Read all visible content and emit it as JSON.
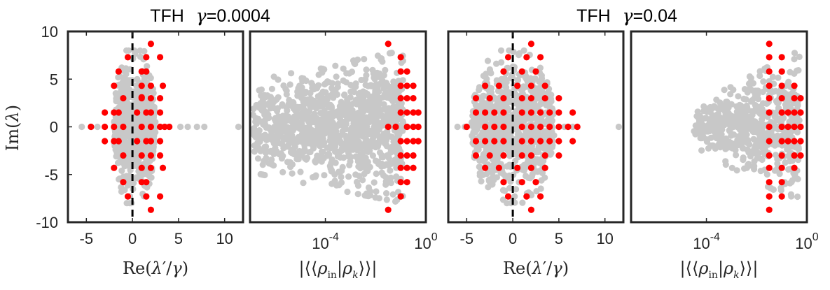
{
  "colors": {
    "gray": "#c8c8c8",
    "red": "#ff0000",
    "frame": "#262626"
  },
  "titles": [
    {
      "prefix": "TFH",
      "greek": "γ",
      "value": "=0.0004"
    },
    {
      "prefix": "TFH",
      "greek": "γ",
      "value": "=0.04"
    }
  ],
  "chart_data": [
    {
      "type": "scatter",
      "panel": "left-1",
      "title": "TFH γ=0.0004",
      "xlabel": "Re(λ′/γ)",
      "ylabel": "Im(λ)",
      "xlim": [
        -7,
        12
      ],
      "ylim": [
        -10,
        10
      ],
      "xticks": [
        -5,
        0,
        5,
        10
      ],
      "xticklabels": [
        "-5",
        "0",
        "5",
        "10"
      ],
      "yticks": [
        10,
        5,
        0,
        -5,
        -10
      ],
      "yticklabels": [
        "10",
        "5",
        "0",
        "-5",
        "-10"
      ],
      "vline": 0,
      "series": [
        {
          "name": "all eigenvalues",
          "color": "gray",
          "distribution": "cloud",
          "n": 700,
          "xrange": [
            -2,
            2.5
          ],
          "yrange": [
            -8,
            8
          ],
          "axis_points": [
            [
              -5.5,
              0
            ],
            [
              -4.5,
              0
            ],
            [
              -3.8,
              0
            ],
            [
              5.2,
              0
            ],
            [
              6.0,
              0
            ],
            [
              7.0,
              0
            ],
            [
              7.8,
              0
            ],
            [
              11.5,
              0
            ]
          ]
        },
        {
          "name": "selected",
          "color": "red",
          "points": [
            [
              -4.5,
              0
            ],
            [
              -3,
              0
            ],
            [
              -2,
              0
            ],
            [
              -1,
              0
            ],
            [
              1,
              0
            ],
            [
              2,
              0
            ],
            [
              3,
              0
            ],
            [
              3.5,
              0
            ],
            [
              4,
              0
            ],
            [
              -3,
              1.5
            ],
            [
              -2,
              1.5
            ],
            [
              -1.5,
              1.5
            ],
            [
              0.5,
              1.5
            ],
            [
              1.5,
              1.5
            ],
            [
              2,
              1.5
            ],
            [
              3,
              1.5
            ],
            [
              -3,
              -1.5
            ],
            [
              -2,
              -1.5
            ],
            [
              -1.5,
              -1.5
            ],
            [
              0.5,
              -1.5
            ],
            [
              1.5,
              -1.5
            ],
            [
              2,
              -1.5
            ],
            [
              3,
              -1.5
            ],
            [
              -1,
              3
            ],
            [
              1,
              3
            ],
            [
              2,
              3
            ],
            [
              3,
              3
            ],
            [
              -1,
              -3
            ],
            [
              1,
              3.1
            ],
            [
              1,
              -3
            ],
            [
              2,
              -3
            ],
            [
              3,
              -3
            ],
            [
              -2,
              4.3
            ],
            [
              1,
              4.3
            ],
            [
              2,
              4.3
            ],
            [
              3.3,
              4.3
            ],
            [
              -2,
              -4.3
            ],
            [
              1,
              -4.3
            ],
            [
              2,
              -4.3
            ],
            [
              3.3,
              -4.3
            ],
            [
              -1.5,
              5.8
            ],
            [
              1,
              5.8
            ],
            [
              1.5,
              5.8
            ],
            [
              -1,
              -5.8
            ],
            [
              1,
              -5.8
            ],
            [
              1.5,
              -5.8
            ],
            [
              -0.5,
              7.3
            ],
            [
              1.5,
              7.3
            ],
            [
              3,
              7.3
            ],
            [
              -0.5,
              -7.3
            ],
            [
              1.5,
              -7.3
            ],
            [
              3,
              -7.3
            ],
            [
              2,
              8.7
            ],
            [
              2,
              -8.7
            ]
          ]
        }
      ]
    },
    {
      "type": "scatter",
      "panel": "left-2",
      "xlabel": "|⟨⟨ρin|ρk⟩⟩|",
      "xscale": "log",
      "xlim_log10": [
        -7,
        0
      ],
      "ylim": [
        -10,
        10
      ],
      "xticks_log10": [
        -4,
        0
      ],
      "xticklabels": [
        {
          "base": "10",
          "exp": "-4"
        },
        {
          "base": "10",
          "exp": "0"
        }
      ],
      "series": [
        {
          "name": "all eigenvalues",
          "color": "gray",
          "distribution": "wide-cloud",
          "n": 1100,
          "xrange_log10": [
            -6.9,
            -0.9
          ],
          "yrange": [
            -8,
            8
          ]
        },
        {
          "name": "selected",
          "color": "red",
          "points": [
            [
              -1.5,
              0
            ],
            [
              -1.2,
              0
            ],
            [
              -0.75,
              0
            ],
            [
              -0.5,
              0
            ],
            [
              -0.3,
              0
            ],
            [
              -1,
              1.5
            ],
            [
              -0.75,
              1.5
            ],
            [
              -0.5,
              1.5
            ],
            [
              -0.3,
              1.5
            ],
            [
              -1,
              -1.5
            ],
            [
              -0.75,
              -1.5
            ],
            [
              -0.5,
              -1.5
            ],
            [
              -0.3,
              -1.5
            ],
            [
              -1,
              3
            ],
            [
              -0.75,
              3
            ],
            [
              -0.5,
              3
            ],
            [
              -1,
              -3
            ],
            [
              -0.75,
              -3
            ],
            [
              -0.5,
              -3
            ],
            [
              -1,
              4.3
            ],
            [
              -0.75,
              4.3
            ],
            [
              -0.5,
              4.3
            ],
            [
              -1,
              -4.3
            ],
            [
              -0.75,
              -4.3
            ],
            [
              -0.5,
              -4.3
            ],
            [
              -1,
              5.8
            ],
            [
              -0.75,
              5.8
            ],
            [
              -1,
              -5.8
            ],
            [
              -0.75,
              -5.8
            ],
            [
              -1,
              7.3
            ],
            [
              -1,
              -7.3
            ],
            [
              -1.5,
              8.7
            ],
            [
              -1.5,
              -8.7
            ]
          ]
        }
      ]
    },
    {
      "type": "scatter",
      "panel": "right-1",
      "title": "TFH γ=0.04",
      "xlabel": "Re(λ′/γ)",
      "xlim": [
        -7,
        12
      ],
      "ylim": [
        -10,
        10
      ],
      "xticks": [
        -5,
        0,
        5,
        10
      ],
      "xticklabels": [
        "-5",
        "0",
        "5",
        "10"
      ],
      "vline": 0,
      "series": [
        {
          "name": "all eigenvalues",
          "color": "gray",
          "distribution": "cloud",
          "n": 800,
          "xrange": [
            -4.5,
            4.5
          ],
          "yrange": [
            -8,
            8
          ],
          "axis_points": [
            [
              -6.0,
              0
            ],
            [
              -5.2,
              0
            ],
            [
              5.6,
              0
            ],
            [
              6.5,
              0
            ],
            [
              11.5,
              0
            ]
          ]
        },
        {
          "name": "selected",
          "color": "red",
          "points": [
            [
              -5,
              0
            ],
            [
              -3,
              0
            ],
            [
              -2,
              0
            ],
            [
              -1,
              0
            ],
            [
              1,
              0
            ],
            [
              2,
              0
            ],
            [
              3,
              0
            ],
            [
              4,
              0
            ],
            [
              5,
              0
            ],
            [
              6,
              0
            ],
            [
              7,
              0
            ],
            [
              -4,
              1.5
            ],
            [
              -3,
              1.5
            ],
            [
              -2,
              1.5
            ],
            [
              -1,
              1.5
            ],
            [
              1,
              1.5
            ],
            [
              2,
              1.5
            ],
            [
              3,
              1.5
            ],
            [
              4,
              1.5
            ],
            [
              5,
              1.5
            ],
            [
              6.5,
              1.5
            ],
            [
              -4,
              -1.5
            ],
            [
              -3,
              -1.5
            ],
            [
              -2,
              -1.5
            ],
            [
              -1,
              -1.5
            ],
            [
              1,
              -1.5
            ],
            [
              2,
              -1.5
            ],
            [
              3,
              -1.5
            ],
            [
              4,
              -1.5
            ],
            [
              5,
              -1.5
            ],
            [
              6.5,
              -1.5
            ],
            [
              -4,
              3
            ],
            [
              -2.5,
              3
            ],
            [
              -1,
              3
            ],
            [
              1,
              3
            ],
            [
              2,
              3
            ],
            [
              3.5,
              3
            ],
            [
              5,
              3
            ],
            [
              -4,
              -3
            ],
            [
              -2.5,
              -3
            ],
            [
              -1,
              -3
            ],
            [
              1,
              -3
            ],
            [
              2,
              -3
            ],
            [
              3.5,
              -3
            ],
            [
              5,
              -3
            ],
            [
              -3,
              4.3
            ],
            [
              -1.5,
              4.3
            ],
            [
              0.5,
              4.3
            ],
            [
              2,
              4.3
            ],
            [
              3.5,
              4.3
            ],
            [
              -3,
              -4.3
            ],
            [
              -1.5,
              -4.3
            ],
            [
              0.5,
              -4.3
            ],
            [
              2,
              -4.3
            ],
            [
              3.5,
              -4.3
            ],
            [
              -1,
              5.8
            ],
            [
              1,
              5.8
            ],
            [
              2.5,
              5.8
            ],
            [
              -1,
              -5.8
            ],
            [
              1,
              -5.8
            ],
            [
              2.5,
              -5.8
            ],
            [
              -0.5,
              7.3
            ],
            [
              1.5,
              7.3
            ],
            [
              3,
              7.3
            ],
            [
              -0.5,
              -7.3
            ],
            [
              1.5,
              -7.3
            ],
            [
              3,
              -7.3
            ],
            [
              2,
              8.7
            ],
            [
              2,
              -8.7
            ]
          ]
        }
      ]
    },
    {
      "type": "scatter",
      "panel": "right-2",
      "xlabel": "|⟨⟨ρin|ρk⟩⟩|",
      "xscale": "log",
      "xlim_log10": [
        -7,
        0
      ],
      "ylim": [
        -10,
        10
      ],
      "xticks_log10": [
        -4,
        0
      ],
      "xticklabels": [
        {
          "base": "10",
          "exp": "-4"
        },
        {
          "base": "10",
          "exp": "0"
        }
      ],
      "series": [
        {
          "name": "all eigenvalues",
          "color": "gray",
          "distribution": "narrow-cloud",
          "n": 600,
          "xrange_log10": [
            -4.5,
            -0.3
          ],
          "yrange": [
            -8,
            8
          ]
        },
        {
          "name": "selected",
          "color": "red",
          "points": [
            [
              -1.5,
              0
            ],
            [
              -1,
              0
            ],
            [
              -0.75,
              0
            ],
            [
              -0.5,
              0
            ],
            [
              -0.25,
              0
            ],
            [
              -1.5,
              1.5
            ],
            [
              -1,
              1.5
            ],
            [
              -0.75,
              1.5
            ],
            [
              -0.5,
              1.5
            ],
            [
              -0.25,
              1.5
            ],
            [
              -1.5,
              -1.5
            ],
            [
              -1,
              -1.5
            ],
            [
              -0.75,
              -1.5
            ],
            [
              -0.5,
              -1.5
            ],
            [
              -0.25,
              -1.5
            ],
            [
              -1.5,
              3
            ],
            [
              -1,
              3
            ],
            [
              -0.5,
              3
            ],
            [
              -0.25,
              3
            ],
            [
              -1.5,
              -3
            ],
            [
              -1,
              -3
            ],
            [
              -0.5,
              -3
            ],
            [
              -0.25,
              -3
            ],
            [
              -1.5,
              4.3
            ],
            [
              -1,
              4.3
            ],
            [
              -0.5,
              4.3
            ],
            [
              -1.5,
              -4.3
            ],
            [
              -1,
              -4.3
            ],
            [
              -0.5,
              -4.3
            ],
            [
              -1.5,
              5.8
            ],
            [
              -1,
              5.8
            ],
            [
              -1.5,
              -5.8
            ],
            [
              -1,
              -5.8
            ],
            [
              -1.5,
              7.3
            ],
            [
              -1,
              7.3
            ],
            [
              -1.5,
              -7.3
            ],
            [
              -1,
              -7.3
            ],
            [
              -1.5,
              8.7
            ],
            [
              -1.5,
              -8.7
            ]
          ]
        }
      ]
    }
  ]
}
